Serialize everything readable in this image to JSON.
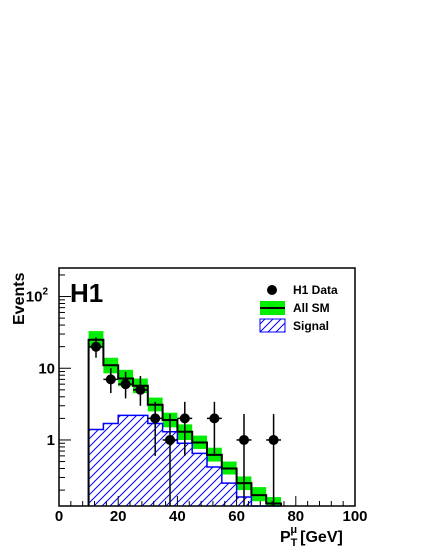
{
  "chart_data": {
    "type": "histogram",
    "experiment_label": "H1",
    "xlabel": {
      "main": "P",
      "sub": "T",
      "sup": "μ",
      "unit": "[GeV]"
    },
    "ylabel": "Events",
    "xlim": [
      0,
      100
    ],
    "ylim": [
      0.12,
      250
    ],
    "yscale": "log",
    "x_ticks": [
      "0",
      "20",
      "40",
      "60",
      "80",
      "100"
    ],
    "y_ticks": [
      {
        "value": 1,
        "base": "1",
        "exp": ""
      },
      {
        "value": 10,
        "base": "10",
        "exp": ""
      },
      {
        "value": 100,
        "base": "10",
        "exp": "2"
      }
    ],
    "bin_edges": [
      10,
      15,
      20,
      25,
      30,
      35,
      40,
      45,
      50,
      55,
      60,
      65,
      70,
      75
    ],
    "series": [
      {
        "name": "All SM",
        "values": [
          25,
          11,
          7.2,
          5.7,
          3.1,
          1.9,
          1.3,
          0.92,
          0.62,
          0.4,
          0.25,
          0.17,
          0.13
        ],
        "band_lo": [
          19,
          8.5,
          5.6,
          4.5,
          2.5,
          1.5,
          1.0,
          0.75,
          0.5,
          0.33,
          0.2,
          0.14,
          0.1
        ],
        "band_hi": [
          33,
          14,
          9.5,
          7.2,
          3.9,
          2.4,
          1.65,
          1.15,
          0.78,
          0.5,
          0.31,
          0.22,
          0.16
        ],
        "color": "#00ee00"
      },
      {
        "name": "Signal",
        "values": [
          1.4,
          1.7,
          2.2,
          2.2,
          1.7,
          1.3,
          0.9,
          0.65,
          0.42,
          0.25,
          0.16,
          0.12,
          0.12
        ],
        "color": "#0000ff"
      },
      {
        "name": "H1 Data",
        "points": [
          {
            "x": 12.5,
            "y": 20,
            "ylo": 14,
            "yhi": 27
          },
          {
            "x": 17.5,
            "y": 7,
            "ylo": 4.5,
            "yhi": 10
          },
          {
            "x": 22.5,
            "y": 6,
            "ylo": 3.8,
            "yhi": 8.9
          },
          {
            "x": 27.5,
            "y": 5,
            "ylo": 3.0,
            "yhi": 7.8
          },
          {
            "x": 32.5,
            "y": 2,
            "ylo": 0.6,
            "yhi": 3.4
          },
          {
            "x": 37.5,
            "y": 1,
            "ylo": 0.12,
            "yhi": 2.3
          },
          {
            "x": 42.5,
            "y": 2,
            "ylo": 0.6,
            "yhi": 3.4
          },
          {
            "x": 52.5,
            "y": 2,
            "ylo": 0.6,
            "yhi": 3.4
          },
          {
            "x": 62.5,
            "y": 1,
            "ylo": 0.12,
            "yhi": 2.3
          },
          {
            "x": 72.5,
            "y": 1,
            "ylo": 0.12,
            "yhi": 2.3
          }
        ]
      }
    ],
    "legend": {
      "position": "top-right",
      "entries": [
        "H1 Data",
        "All SM",
        "Signal"
      ]
    },
    "grid": false
  }
}
